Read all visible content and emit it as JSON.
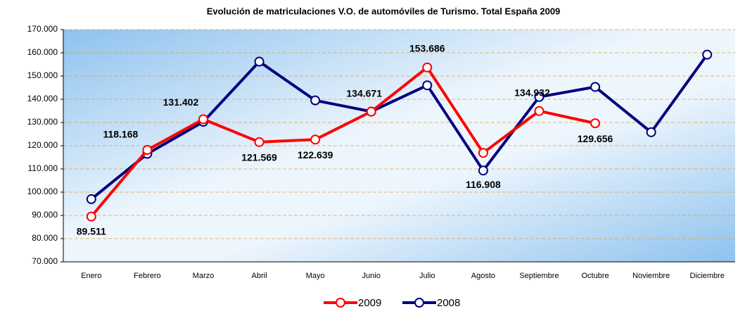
{
  "chart_data": {
    "type": "line",
    "title": "Evolución de matriculaciones V.O. de automóviles de Turismo. Total España 2009",
    "categories": [
      "Enero",
      "Febrero",
      "Marzo",
      "Abril",
      "Mayo",
      "Junio",
      "Julio",
      "Agosto",
      "Septiembre",
      "Octubre",
      "Noviembre",
      "Diciembre"
    ],
    "series": [
      {
        "name": "2009",
        "color": "#ff0000",
        "values": [
          89511,
          118168,
          131402,
          121569,
          122639,
          134671,
          153686,
          116908,
          134932,
          129656,
          null,
          null
        ],
        "value_labels": [
          "89.511",
          "118.168",
          "131.402",
          "121.569",
          "122.639",
          "134.671",
          "153.686",
          "116.908",
          "134.932",
          "129.656",
          null,
          null
        ]
      },
      {
        "name": "2008",
        "color": "#000080",
        "values": [
          97000,
          116500,
          130300,
          156200,
          139500,
          134700,
          146000,
          109300,
          141000,
          145300,
          125800,
          159200
        ]
      }
    ],
    "ylim": [
      70000,
      170000
    ],
    "yticks": [
      {
        "value": 70000,
        "label": "70.000"
      },
      {
        "value": 80000,
        "label": "80.000"
      },
      {
        "value": 90000,
        "label": "90.000"
      },
      {
        "value": 100000,
        "label": "100.000"
      },
      {
        "value": 110000,
        "label": "110.000"
      },
      {
        "value": 120000,
        "label": "120.000"
      },
      {
        "value": 130000,
        "label": "130.000"
      },
      {
        "value": 140000,
        "label": "140.000"
      },
      {
        "value": 150000,
        "label": "150.000"
      },
      {
        "value": 160000,
        "label": "160.000"
      },
      {
        "value": 170000,
        "label": "170.000"
      }
    ],
    "grid": true,
    "legend": "bottom"
  }
}
